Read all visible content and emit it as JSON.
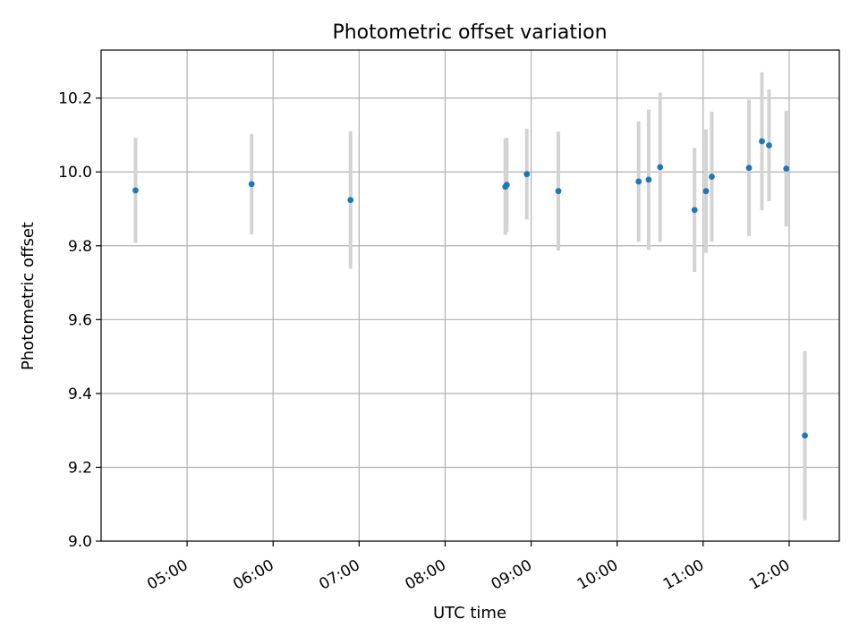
{
  "chart_data": {
    "type": "scatter",
    "title": "Photometric offset variation",
    "xlabel": "UTC time",
    "ylabel": "Photometric offset",
    "xlim": [
      "04:00",
      "12:35"
    ],
    "ylim": [
      9.0,
      10.33
    ],
    "grid": true,
    "x_ticks": [
      "05:00",
      "06:00",
      "07:00",
      "08:00",
      "09:00",
      "10:00",
      "11:00",
      "12:00"
    ],
    "y_ticks": [
      "9.0",
      "9.2",
      "9.4",
      "9.6",
      "9.8",
      "10.0",
      "10.2"
    ],
    "colors": {
      "point": "#1f77b4",
      "errorbar": "#d3d3d3",
      "grid": "#b0b0b0"
    },
    "series": [
      {
        "points": [
          {
            "x": "04:24",
            "y": 9.95,
            "err": 0.142
          },
          {
            "x": "05:45",
            "y": 9.967,
            "err": 0.136
          },
          {
            "x": "06:54",
            "y": 9.924,
            "err": 0.186
          },
          {
            "x": "08:42",
            "y": 9.96,
            "err": 0.13
          },
          {
            "x": "08:43",
            "y": 9.965,
            "err": 0.128
          },
          {
            "x": "08:57",
            "y": 9.994,
            "err": 0.123
          },
          {
            "x": "09:19",
            "y": 9.948,
            "err": 0.161
          },
          {
            "x": "10:15",
            "y": 9.974,
            "err": 0.163
          },
          {
            "x": "10:22",
            "y": 9.979,
            "err": 0.19
          },
          {
            "x": "10:30",
            "y": 10.013,
            "err": 0.202
          },
          {
            "x": "10:54",
            "y": 9.897,
            "err": 0.168
          },
          {
            "x": "11:02",
            "y": 9.948,
            "err": 0.167
          },
          {
            "x": "11:06",
            "y": 9.987,
            "err": 0.176
          },
          {
            "x": "11:32",
            "y": 10.011,
            "err": 0.185
          },
          {
            "x": "11:41",
            "y": 10.083,
            "err": 0.187
          },
          {
            "x": "11:46",
            "y": 10.072,
            "err": 0.151
          },
          {
            "x": "11:58",
            "y": 10.009,
            "err": 0.157
          },
          {
            "x": "12:11",
            "y": 9.286,
            "err": 0.229
          }
        ]
      }
    ]
  }
}
